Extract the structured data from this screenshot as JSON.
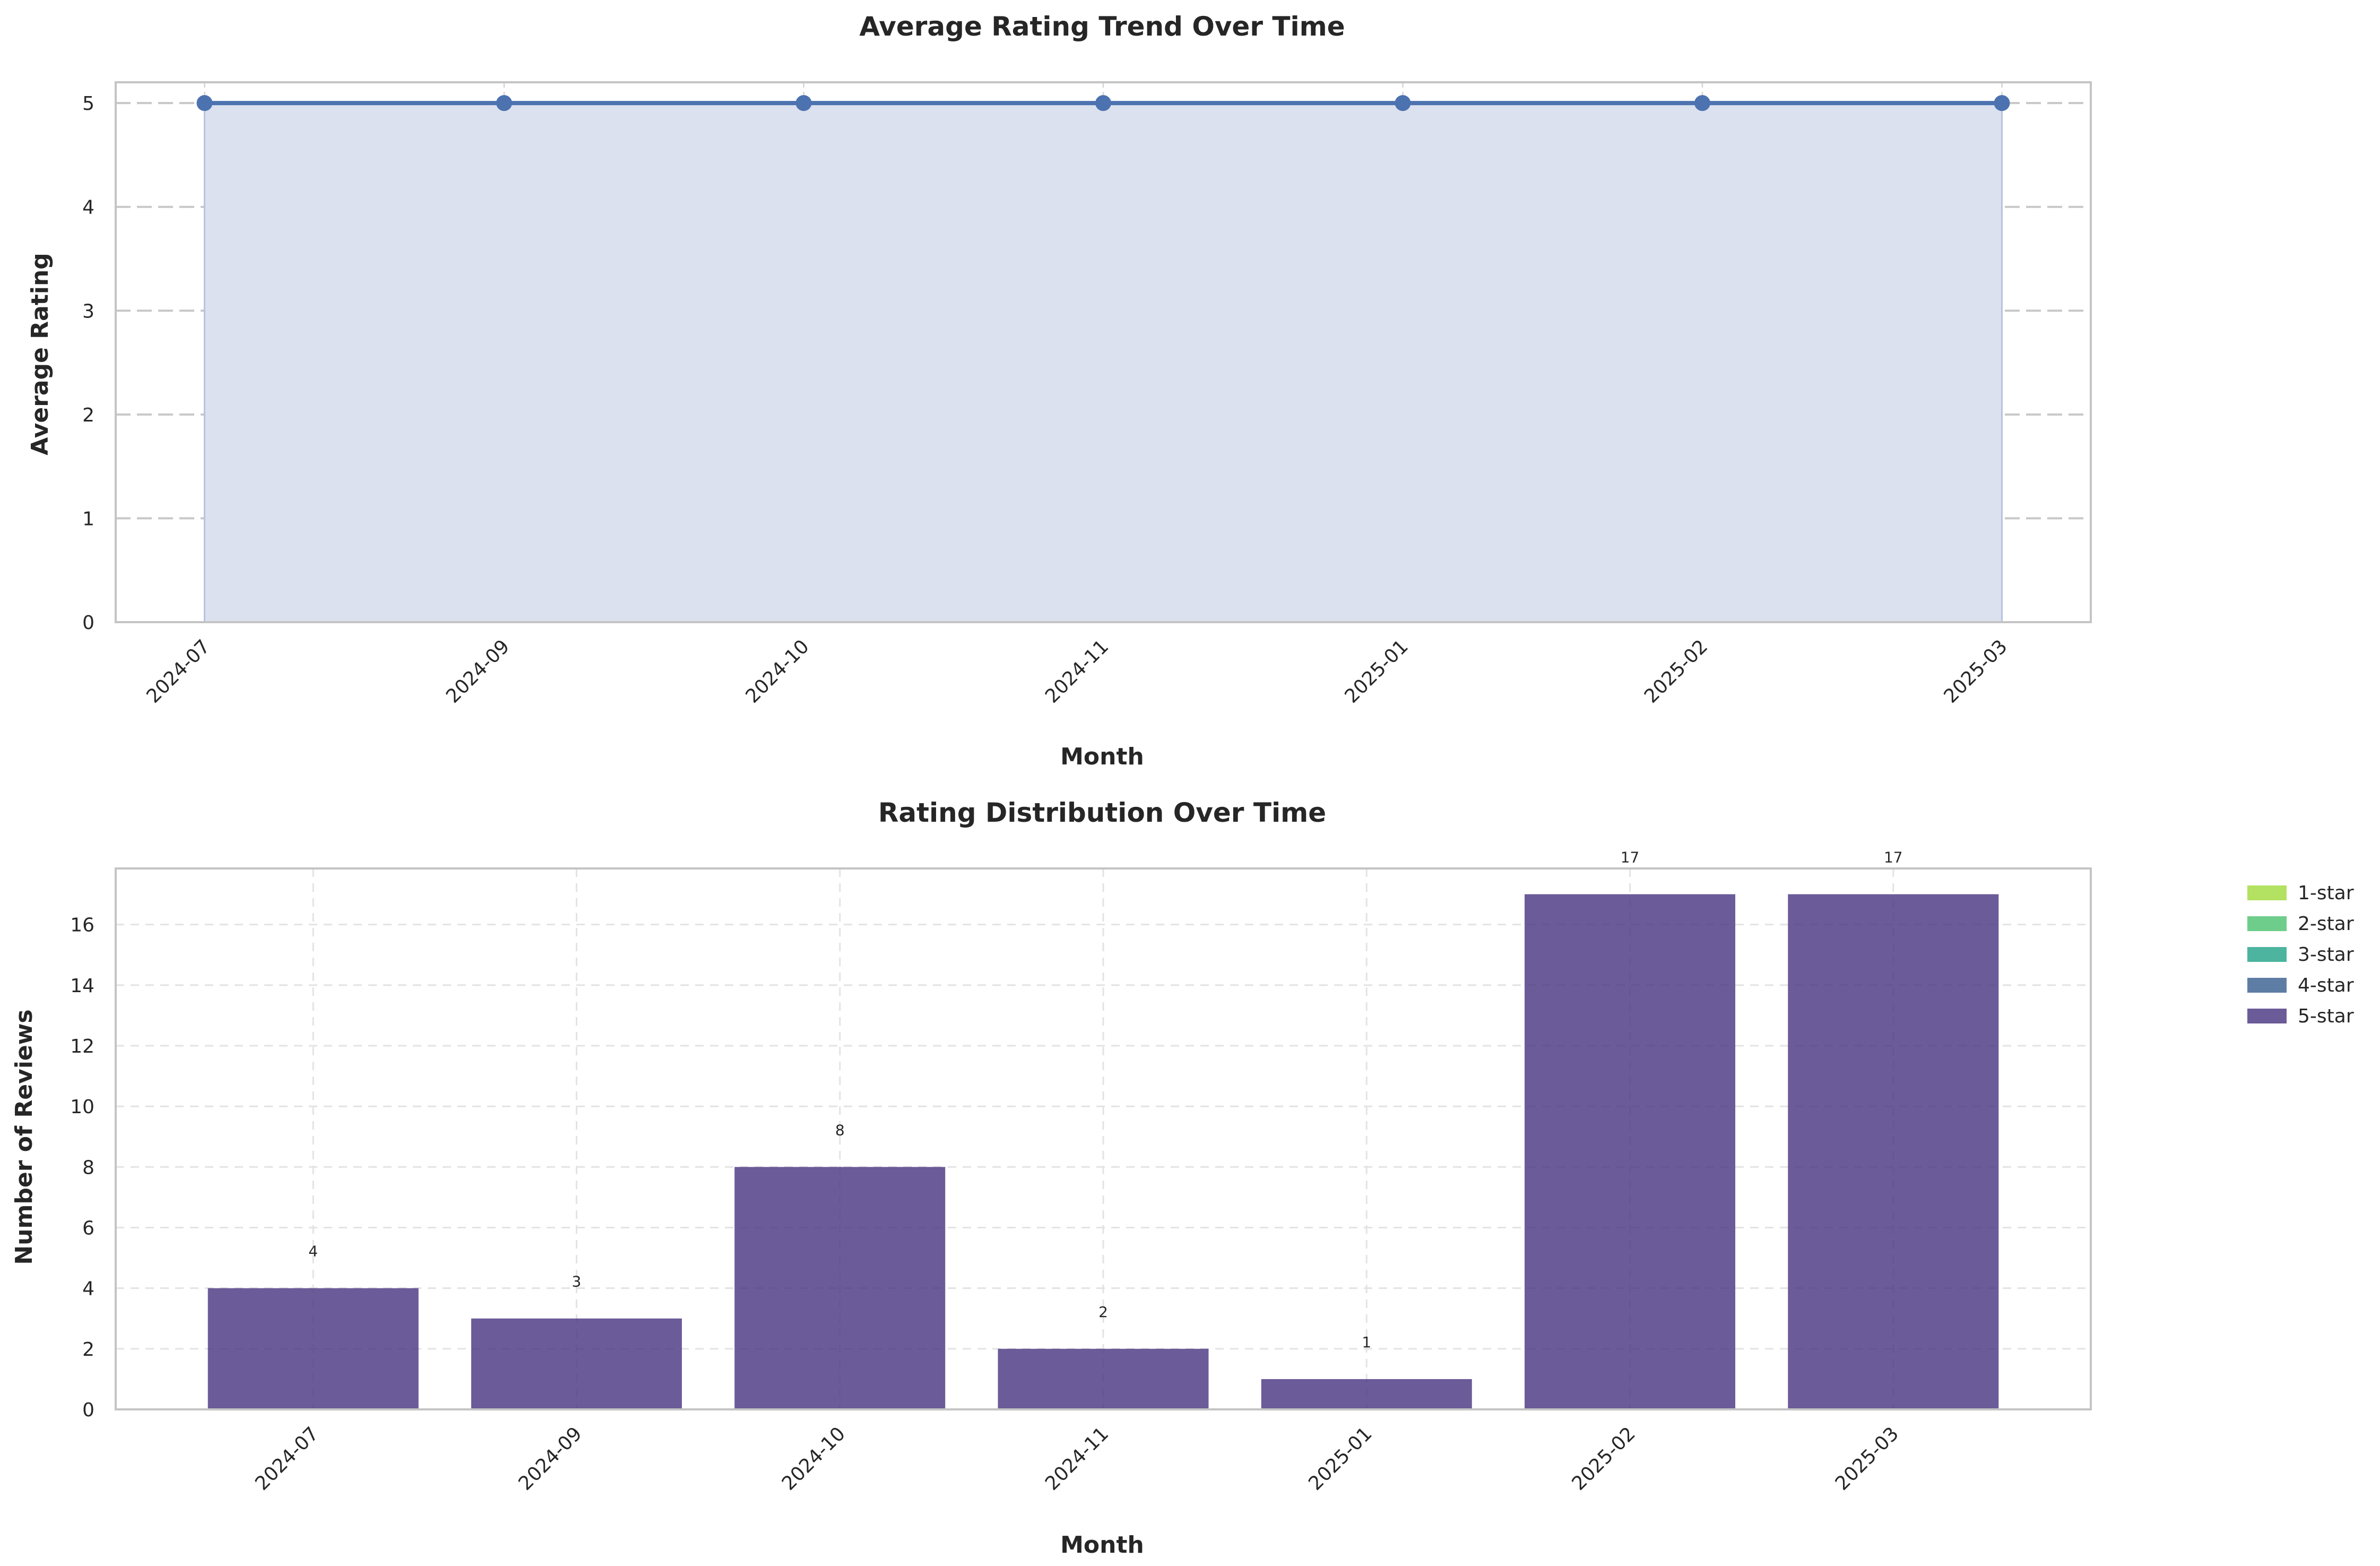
{
  "chart_data": [
    {
      "type": "line",
      "title": "Average Rating Trend Over Time",
      "xlabel": "Month",
      "ylabel": "Average Rating",
      "x": [
        "2024-07",
        "2024-09",
        "2024-10",
        "2024-11",
        "2025-01",
        "2025-02",
        "2025-03"
      ],
      "values": [
        5,
        5,
        5,
        5,
        5,
        5,
        5
      ],
      "ylim": [
        0,
        5.2
      ],
      "yticks": [
        0,
        1,
        2,
        3,
        4,
        5
      ],
      "grid": true,
      "fill_under": true,
      "color": "#4c72b0",
      "fill_color": "#dbe1ee"
    },
    {
      "type": "bar",
      "stacked": true,
      "title": "Rating Distribution Over Time",
      "xlabel": "Month",
      "ylabel": "Number of Reviews",
      "categories": [
        "2024-07",
        "2024-09",
        "2024-10",
        "2024-11",
        "2025-01",
        "2025-02",
        "2025-03"
      ],
      "series": [
        {
          "name": "1-star",
          "color": "#a0da39",
          "values": [
            0,
            0,
            0,
            0,
            0,
            0,
            0
          ]
        },
        {
          "name": "2-star",
          "color": "#4ac16d",
          "values": [
            0,
            0,
            0,
            0,
            0,
            0,
            0
          ]
        },
        {
          "name": "3-star",
          "color": "#1fa187",
          "values": [
            0,
            0,
            0,
            0,
            0,
            0,
            0
          ]
        },
        {
          "name": "4-star",
          "color": "#365c8d",
          "values": [
            0,
            0,
            0,
            0,
            0,
            0,
            0
          ]
        },
        {
          "name": "5-star",
          "color": "#46327e",
          "values": [
            4,
            3,
            8,
            2,
            1,
            17,
            17
          ]
        }
      ],
      "totals": [
        4,
        3,
        8,
        2,
        1,
        17,
        17
      ],
      "ylim": [
        0,
        17.85
      ],
      "yticks": [
        0,
        2,
        4,
        6,
        8,
        10,
        12,
        14,
        16
      ],
      "grid": true,
      "legend": "outside-right"
    }
  ]
}
